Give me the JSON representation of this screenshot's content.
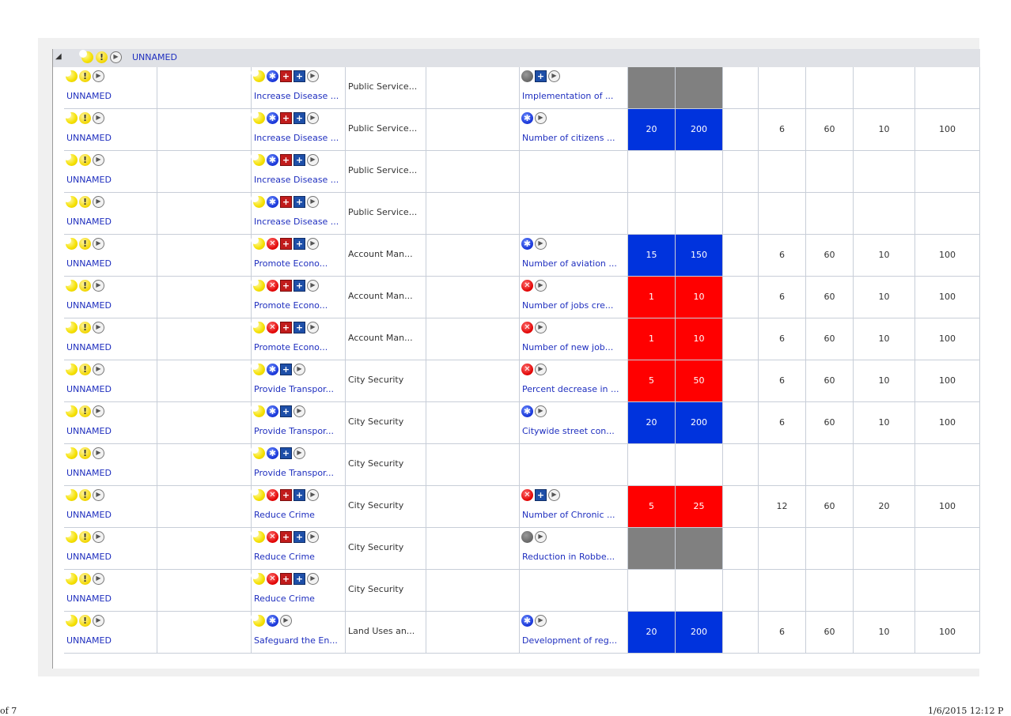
{
  "group": {
    "name": "UNNAMED",
    "icons": [
      "moon-icon",
      "warning-icon",
      "arrow-icon"
    ]
  },
  "status_colors": {
    "blue": "#0033dd",
    "red": "#ff0000",
    "grey": "#808080"
  },
  "rows": [
    {
      "name": "UNNAMED",
      "objective_icons": [
        "moon-icon",
        "blue-star-icon",
        "red-square-icon",
        "blue-square-icon",
        "arrow-icon"
      ],
      "objective": "Increase Disease ...",
      "perspective": "Public Service...",
      "measure_icons": [
        "grey-circle-icon",
        "blue-square-icon",
        "arrow-icon"
      ],
      "measure": "Implementation of ...",
      "status": "grey",
      "v1": "",
      "v2": "",
      "v3": "",
      "v4": "",
      "v5": "",
      "v6": ""
    },
    {
      "name": "UNNAMED",
      "objective_icons": [
        "moon-icon",
        "blue-star-icon",
        "red-square-icon",
        "blue-square-icon",
        "arrow-icon"
      ],
      "objective": "Increase Disease ...",
      "perspective": "Public Service...",
      "measure_icons": [
        "blue-star-icon",
        "arrow-icon"
      ],
      "measure": "Number of citizens ...",
      "status": "blue",
      "v1": "20",
      "v2": "200",
      "v3": "6",
      "v4": "60",
      "v5": "10",
      "v6": "100"
    },
    {
      "name": "UNNAMED",
      "objective_icons": [
        "moon-icon",
        "blue-star-icon",
        "red-square-icon",
        "blue-square-icon",
        "arrow-icon"
      ],
      "objective": "Increase Disease ...",
      "perspective": "Public Service...",
      "measure_icons": [],
      "measure": "",
      "status": "none",
      "v1": "",
      "v2": "",
      "v3": "",
      "v4": "",
      "v5": "",
      "v6": ""
    },
    {
      "name": "UNNAMED",
      "objective_icons": [
        "moon-icon",
        "blue-star-icon",
        "red-square-icon",
        "blue-square-icon",
        "arrow-icon"
      ],
      "objective": "Increase Disease ...",
      "perspective": "Public Service...",
      "measure_icons": [],
      "measure": "",
      "status": "none",
      "v1": "",
      "v2": "",
      "v3": "",
      "v4": "",
      "v5": "",
      "v6": ""
    },
    {
      "name": "UNNAMED",
      "objective_icons": [
        "moon-icon",
        "red-x-icon",
        "red-square-icon",
        "blue-square-icon",
        "arrow-icon"
      ],
      "objective": "Promote Econo...",
      "perspective": "Account Man...",
      "measure_icons": [
        "blue-star-icon",
        "arrow-icon"
      ],
      "measure": "Number of aviation ...",
      "status": "blue",
      "v1": "15",
      "v2": "150",
      "v3": "6",
      "v4": "60",
      "v5": "10",
      "v6": "100"
    },
    {
      "name": "UNNAMED",
      "objective_icons": [
        "moon-icon",
        "red-x-icon",
        "red-square-icon",
        "blue-square-icon",
        "arrow-icon"
      ],
      "objective": "Promote Econo...",
      "perspective": "Account Man...",
      "measure_icons": [
        "red-x-icon",
        "arrow-icon"
      ],
      "measure": "Number of jobs cre...",
      "status": "red",
      "v1": "1",
      "v2": "10",
      "v3": "6",
      "v4": "60",
      "v5": "10",
      "v6": "100"
    },
    {
      "name": "UNNAMED",
      "objective_icons": [
        "moon-icon",
        "red-x-icon",
        "red-square-icon",
        "blue-square-icon",
        "arrow-icon"
      ],
      "objective": "Promote Econo...",
      "perspective": "Account Man...",
      "measure_icons": [
        "red-x-icon",
        "arrow-icon"
      ],
      "measure": "Number of new job...",
      "status": "red",
      "v1": "1",
      "v2": "10",
      "v3": "6",
      "v4": "60",
      "v5": "10",
      "v6": "100"
    },
    {
      "name": "UNNAMED",
      "objective_icons": [
        "moon-icon",
        "blue-star-icon",
        "blue-square-icon",
        "arrow-icon"
      ],
      "objective": "Provide Transpor...",
      "perspective": "City Security",
      "measure_icons": [
        "red-x-icon",
        "arrow-icon"
      ],
      "measure": "Percent decrease in ...",
      "status": "red",
      "v1": "5",
      "v2": "50",
      "v3": "6",
      "v4": "60",
      "v5": "10",
      "v6": "100"
    },
    {
      "name": "UNNAMED",
      "objective_icons": [
        "moon-icon",
        "blue-star-icon",
        "blue-square-icon",
        "arrow-icon"
      ],
      "objective": "Provide Transpor...",
      "perspective": "City Security",
      "measure_icons": [
        "blue-star-icon",
        "arrow-icon"
      ],
      "measure": "Citywide street con...",
      "status": "blue",
      "v1": "20",
      "v2": "200",
      "v3": "6",
      "v4": "60",
      "v5": "10",
      "v6": "100"
    },
    {
      "name": "UNNAMED",
      "objective_icons": [
        "moon-icon",
        "blue-star-icon",
        "blue-square-icon",
        "arrow-icon"
      ],
      "objective": "Provide Transpor...",
      "perspective": "City Security",
      "measure_icons": [],
      "measure": "",
      "status": "none",
      "v1": "",
      "v2": "",
      "v3": "",
      "v4": "",
      "v5": "",
      "v6": ""
    },
    {
      "name": "UNNAMED",
      "objective_icons": [
        "moon-icon",
        "red-x-icon",
        "red-square-icon",
        "blue-square-icon",
        "arrow-icon"
      ],
      "objective": "Reduce Crime",
      "perspective": "City Security",
      "measure_icons": [
        "red-x-icon",
        "blue-square-icon",
        "arrow-icon"
      ],
      "measure": "Number of Chronic ...",
      "status": "red",
      "v1": "5",
      "v2": "25",
      "v3": "12",
      "v4": "60",
      "v5": "20",
      "v6": "100"
    },
    {
      "name": "UNNAMED",
      "objective_icons": [
        "moon-icon",
        "red-x-icon",
        "red-square-icon",
        "blue-square-icon",
        "arrow-icon"
      ],
      "objective": "Reduce Crime",
      "perspective": "City Security",
      "measure_icons": [
        "grey-circle-icon",
        "arrow-icon"
      ],
      "measure": "Reduction in Robbe...",
      "status": "grey",
      "v1": "",
      "v2": "",
      "v3": "",
      "v4": "",
      "v5": "",
      "v6": ""
    },
    {
      "name": "UNNAMED",
      "objective_icons": [
        "moon-icon",
        "red-x-icon",
        "red-square-icon",
        "blue-square-icon",
        "arrow-icon"
      ],
      "objective": "Reduce Crime",
      "perspective": "City Security",
      "measure_icons": [],
      "measure": "",
      "status": "none",
      "v1": "",
      "v2": "",
      "v3": "",
      "v4": "",
      "v5": "",
      "v6": ""
    },
    {
      "name": "UNNAMED",
      "objective_icons": [
        "moon-icon",
        "blue-star-icon",
        "arrow-icon"
      ],
      "objective": "Safeguard the En...",
      "perspective": "Land Uses an...",
      "measure_icons": [
        "blue-star-icon",
        "arrow-icon"
      ],
      "measure": "Development of reg...",
      "status": "blue",
      "v1": "20",
      "v2": "200",
      "v3": "6",
      "v4": "60",
      "v5": "10",
      "v6": "100"
    }
  ],
  "footer": {
    "left": "of 7",
    "right": "1/6/2015 12:12 P"
  }
}
